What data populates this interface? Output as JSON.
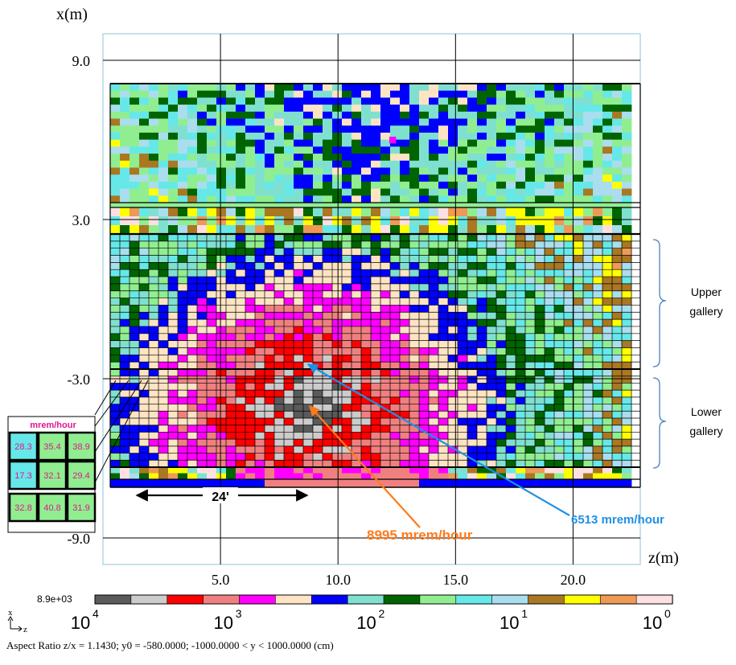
{
  "chart_data": {
    "type": "heatmap",
    "title": "",
    "xlabel": "z(m)",
    "ylabel": "x(m)",
    "x_ticks": [
      {
        "value": 5.0,
        "label": "5.0"
      },
      {
        "value": 10.0,
        "label": "10.0"
      },
      {
        "value": 15.0,
        "label": "15.0"
      },
      {
        "value": 20.0,
        "label": "20.0"
      }
    ],
    "y_ticks": [
      {
        "value": 9.0,
        "label": "9.0"
      },
      {
        "value": 3.0,
        "label": "3.0"
      },
      {
        "value": -3.0,
        "label": "-3.0"
      },
      {
        "value": -9.0,
        "label": "-9.0"
      }
    ],
    "xlim": [
      0,
      22.86
    ],
    "ylim": [
      -10,
      10
    ],
    "grid": true,
    "colorbar": {
      "max_label": "8.9e+03",
      "bands": [
        "#5a5a5a",
        "#cccccc",
        "#ff0000",
        "#f08080",
        "#ff00ff",
        "#ffe4c4",
        "#0000ff",
        "#80e0d0",
        "#006400",
        "#90ee90",
        "#66e8e8",
        "#aaddee",
        "#aa7722",
        "#ffff00",
        "#ee9955",
        "#ffe0e0"
      ],
      "tick_bases": [
        "10",
        "10",
        "10",
        "10",
        "10"
      ],
      "tick_exponents": [
        "4",
        "3",
        "2",
        "1",
        "0"
      ],
      "tick_values": [
        10000,
        1000,
        100,
        10,
        1
      ]
    },
    "colorbar_axis": {
      "up": "x",
      "right": "z"
    },
    "footer": "Aspect Ratio z/x =  1.1430; y0 = -580.0000;  -1000.0000 < y < 1000.0000 (cm)",
    "annotations": {
      "peak_label": "8995 mrem/hour",
      "peak_color": "#ff7a1a",
      "second_label": "6513 mrem/hour",
      "second_color": "#1e90e6",
      "distance_label": "24'",
      "upper_gallery": [
        "Upper",
        "gallery"
      ],
      "lower_gallery": [
        "Lower",
        "gallery"
      ]
    },
    "inset": {
      "title": "mrem/hour",
      "title_color": "#e0188c",
      "values": [
        [
          "28.3",
          "35.4",
          "38.9"
        ],
        [
          "17.3",
          "32.1",
          "29.4"
        ],
        [
          "32.8",
          "40.8",
          "31.9"
        ]
      ],
      "cell_colors": [
        [
          "#66e8e8",
          "#90ee90",
          "#90ee90"
        ],
        [
          "#66e8e8",
          "#90ee90",
          "#90ee90"
        ],
        [
          "#90ee90",
          "#90ee90",
          "#90ee90"
        ]
      ]
    }
  }
}
